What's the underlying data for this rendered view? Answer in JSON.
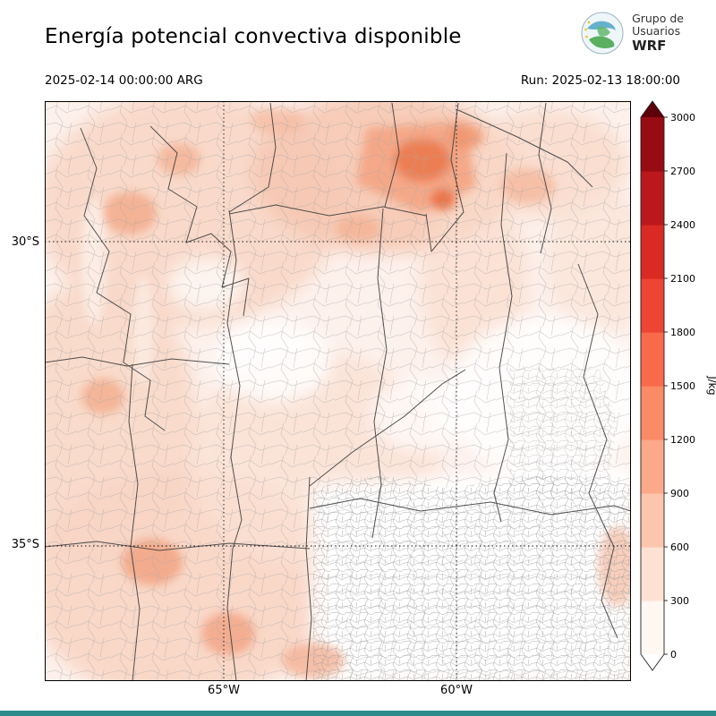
{
  "header": {
    "title": "Energía potencial convectiva disponible",
    "logo": {
      "line1": "Grupo de",
      "line2": "Usuarios",
      "line3": "WRF"
    },
    "valid_datetime": "2025-02-14 00:00:00 ARG",
    "run_datetime": "Run: 2025-02-13 18:00:00"
  },
  "map": {
    "lat_labels": [
      "30°S",
      "35°S"
    ],
    "lon_labels": [
      "65°W",
      "60°W"
    ]
  },
  "colorbar": {
    "unit": "J/kg",
    "ticks": [
      0,
      300,
      600,
      900,
      1200,
      1500,
      1800,
      2100,
      2400,
      2700,
      3000
    ],
    "max": 3000,
    "segment_colors": [
      "#fff7f2",
      "#fde2d3",
      "#fcc6ad",
      "#fca98a",
      "#fb8a67",
      "#f96a4b",
      "#ee4433",
      "#d92b23",
      "#bb181b",
      "#970b13"
    ],
    "above_color": "#5e0009",
    "below_color": "#ffffff"
  },
  "footer": {
    "accent_color": "#2e8b8b"
  }
}
